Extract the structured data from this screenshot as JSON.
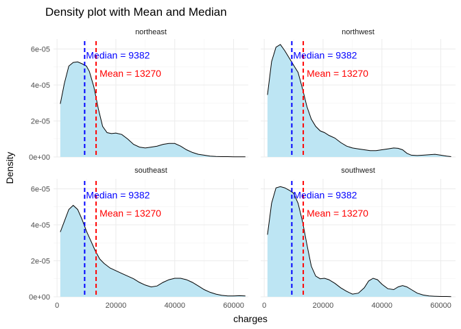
{
  "chart_data": {
    "type": "area",
    "title": "Density plot with Mean and Median",
    "xlabel": "charges",
    "ylabel": "Density",
    "xlim": [
      -1200,
      65000
    ],
    "ylim": [
      0,
      6.55e-05
    ],
    "x_ticks": [
      0,
      20000,
      40000,
      60000
    ],
    "x_tick_labels": [
      "0",
      "20000",
      "40000",
      "60000"
    ],
    "y_ticks": [
      0,
      2e-05,
      4e-05,
      6e-05
    ],
    "y_tick_labels": [
      "0e+00",
      "2e-05",
      "4e-05",
      "6e-05"
    ],
    "grid": true,
    "fill_color": "#bde5f3",
    "median": {
      "value": 9382,
      "label": "Median = 9382",
      "color": "#0000ff"
    },
    "mean": {
      "value": 13270,
      "label": "Mean = 13270",
      "color": "#ff0000"
    },
    "panels": [
      {
        "name": "northeast",
        "x": [
          1100,
          2500,
          4000,
          5500,
          7000,
          8500,
          10000,
          11000,
          12500,
          14000,
          15500,
          17000,
          18500,
          20000,
          22000,
          24000,
          26000,
          28000,
          30000,
          32000,
          34000,
          36000,
          38000,
          40000,
          42000,
          44000,
          46000,
          48000,
          50000,
          52000,
          54000,
          56000,
          58000,
          60000,
          62000,
          64000
        ],
        "y": [
          2.95e-05,
          4.1e-05,
          5.05e-05,
          5.25e-05,
          5.28e-05,
          5.18e-05,
          5.05e-05,
          4.75e-05,
          3.9e-05,
          2.7e-05,
          1.7e-05,
          1.35e-05,
          1.3e-05,
          1.33e-05,
          1.25e-05,
          1e-05,
          7e-06,
          5.5e-06,
          5e-06,
          5.5e-06,
          6e-06,
          7e-06,
          7.5e-06,
          7.5e-06,
          6e-06,
          4e-06,
          2.5e-06,
          1.5e-06,
          1e-06,
          5e-07,
          3e-07,
          2e-07,
          2e-07,
          1e-07,
          1e-07,
          1e-07
        ]
      },
      {
        "name": "northwest",
        "x": [
          1100,
          2500,
          4000,
          5500,
          7000,
          8500,
          10000,
          11500,
          13000,
          14500,
          16000,
          17500,
          19000,
          20500,
          22000,
          24000,
          26000,
          28000,
          30000,
          32000,
          34000,
          36000,
          38000,
          40000,
          42000,
          44000,
          45500,
          47000,
          48500,
          50000,
          52000,
          54000,
          56000,
          58000,
          60000,
          62000,
          63500
        ],
        "y": [
          3.45e-05,
          5.3e-05,
          6.1e-05,
          6.25e-05,
          5.9e-05,
          5.5e-05,
          5.1e-05,
          4.7e-05,
          3.8e-05,
          2.8e-05,
          2.1e-05,
          1.7e-05,
          1.45e-05,
          1.35e-05,
          1.2e-05,
          1.05e-05,
          8e-06,
          6e-06,
          5e-06,
          4.5e-06,
          4e-06,
          3.5e-06,
          3.5e-06,
          4e-06,
          4.5e-06,
          5e-06,
          4.8e-06,
          4e-06,
          2e-06,
          1e-06,
          8e-07,
          1e-06,
          1.2e-06,
          1.5e-06,
          1e-06,
          5e-07,
          2e-07
        ]
      },
      {
        "name": "southeast",
        "x": [
          1100,
          2500,
          4000,
          5500,
          7000,
          8500,
          10000,
          11500,
          13000,
          14500,
          16000,
          18000,
          20000,
          22000,
          24000,
          26000,
          28000,
          30000,
          32000,
          34000,
          36000,
          38000,
          40000,
          42000,
          44000,
          46000,
          48000,
          50000,
          52000,
          54000,
          56000,
          58000,
          60000,
          62000,
          64000
        ],
        "y": [
          3.6e-05,
          4.2e-05,
          4.85e-05,
          5.08e-05,
          4.85e-05,
          4.3e-05,
          3.65e-05,
          3.1e-05,
          2.55e-05,
          2.1e-05,
          1.85e-05,
          1.6e-05,
          1.45e-05,
          1.3e-05,
          1.15e-05,
          1e-05,
          8e-06,
          6.5e-06,
          5.5e-06,
          6e-06,
          8e-06,
          9.5e-06,
          1.03e-05,
          1.03e-05,
          9.5e-06,
          8e-06,
          6e-06,
          4e-06,
          2.5e-06,
          1.5e-06,
          8e-07,
          5e-07,
          5e-07,
          6e-07,
          5e-07
        ]
      },
      {
        "name": "southwest",
        "x": [
          1100,
          2500,
          4000,
          5500,
          7000,
          8500,
          10000,
          11500,
          13000,
          14500,
          16000,
          17500,
          19000,
          20500,
          22000,
          24000,
          26000,
          28000,
          30000,
          32000,
          34000,
          35500,
          37000,
          38500,
          40000,
          42000,
          44000,
          45500,
          47000,
          48500,
          50000,
          52000,
          54000,
          56000,
          58000,
          60000,
          62000,
          63500
        ],
        "y": [
          3.45e-05,
          5.2e-05,
          6.05e-05,
          6.12e-05,
          6.05e-05,
          5.92e-05,
          5.75e-05,
          5.2e-05,
          4.2e-05,
          2.9e-05,
          1.7e-05,
          1.15e-05,
          1e-05,
          1.03e-05,
          9.5e-06,
          7.5e-06,
          5e-06,
          3e-06,
          1.5e-06,
          2e-06,
          5e-06,
          8.8e-06,
          1.03e-05,
          9.5e-06,
          7e-06,
          4.5e-06,
          4e-06,
          5.5e-06,
          6.2e-06,
          5.5e-06,
          4e-06,
          2e-06,
          1e-06,
          5e-07,
          3e-07,
          2e-07,
          2e-07,
          1e-07
        ]
      }
    ]
  }
}
